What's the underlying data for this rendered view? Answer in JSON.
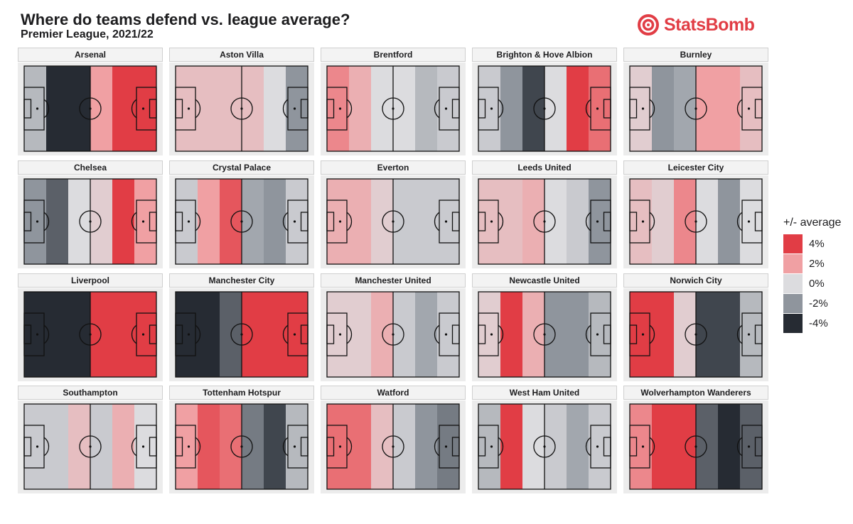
{
  "header": {
    "title": "Where do teams defend vs. league average?",
    "subtitle": "Premier League, 2021/22",
    "logo_text": "StatsBomb",
    "brand_color": "#e13d45"
  },
  "chart_data": {
    "type": "heatmap",
    "title": "Where do teams defend vs. league average?",
    "subtitle": "Premier League, 2021/22",
    "value_unit": "percentage points vs. league average (+/- average)",
    "zones": 6,
    "zone_description": "vertical thirds-of-halves of the pitch, ordered left (own goal) to right",
    "teams": [
      {
        "name": "Arsenal",
        "values": [
          -1,
          -4,
          -4,
          2,
          4,
          4
        ]
      },
      {
        "name": "Aston Villa",
        "values": [
          1,
          1,
          1,
          1,
          0,
          -2
        ]
      },
      {
        "name": "Brentford",
        "values": [
          2.5,
          1.5,
          0,
          0,
          -1,
          -0.5
        ]
      },
      {
        "name": "Brighton & Hove Albion",
        "values": [
          -0.5,
          -2,
          -3.5,
          0,
          4,
          3
        ]
      },
      {
        "name": "Burnley",
        "values": [
          0.5,
          -2,
          -1.5,
          2,
          2,
          1
        ]
      },
      {
        "name": "Chelsea",
        "values": [
          -2,
          -3,
          0,
          0.5,
          4,
          2
        ]
      },
      {
        "name": "Crystal Palace",
        "values": [
          -0.5,
          2,
          3.5,
          -1.5,
          -2,
          -0.5
        ]
      },
      {
        "name": "Everton",
        "values": [
          1.5,
          1.5,
          0.5,
          -0.5,
          -0.5,
          -0.5
        ]
      },
      {
        "name": "Leeds United",
        "values": [
          1,
          1,
          1.5,
          0,
          -0.5,
          -2
        ]
      },
      {
        "name": "Leicester City",
        "values": [
          1,
          0.5,
          2.5,
          0,
          -2,
          0
        ]
      },
      {
        "name": "Liverpool",
        "values": [
          -4,
          -4,
          -4,
          4,
          4,
          4
        ]
      },
      {
        "name": "Manchester City",
        "values": [
          -4,
          -4,
          -3,
          4,
          4,
          4
        ]
      },
      {
        "name": "Manchester United",
        "values": [
          0.5,
          0.5,
          1.5,
          -0.5,
          -1.5,
          -0.5
        ]
      },
      {
        "name": "Newcastle United",
        "values": [
          0.5,
          4,
          1.5,
          -2,
          -2,
          -1
        ]
      },
      {
        "name": "Norwich City",
        "values": [
          4,
          4,
          0.5,
          -3.5,
          -3.5,
          -1
        ]
      },
      {
        "name": "Southampton",
        "values": [
          -0.5,
          -0.5,
          1,
          -0.5,
          1.5,
          0
        ]
      },
      {
        "name": "Tottenham Hotspur",
        "values": [
          2,
          3.5,
          3,
          -2.5,
          -3.5,
          -1
        ]
      },
      {
        "name": "Watford",
        "values": [
          3,
          3,
          1,
          -0.5,
          -2,
          -2.5
        ]
      },
      {
        "name": "West Ham United",
        "values": [
          -1,
          4,
          0,
          -0.5,
          -1.5,
          -0.5
        ]
      },
      {
        "name": "Wolverhampton Wanderers",
        "values": [
          2.5,
          4,
          4,
          -3,
          -4,
          -3
        ]
      }
    ],
    "legend": {
      "title": "+/- average",
      "items": [
        {
          "label": "4%",
          "value": 4,
          "color": "#e13d45"
        },
        {
          "label": "2%",
          "value": 2,
          "color": "#f0a0a3"
        },
        {
          "label": "0%",
          "value": 0,
          "color": "#dcdcdf"
        },
        {
          "label": "-2%",
          "value": -2,
          "color": "#8f959d"
        },
        {
          "label": "-4%",
          "value": -4,
          "color": "#262b33"
        }
      ]
    },
    "scale_limits": [
      -4,
      4
    ]
  }
}
